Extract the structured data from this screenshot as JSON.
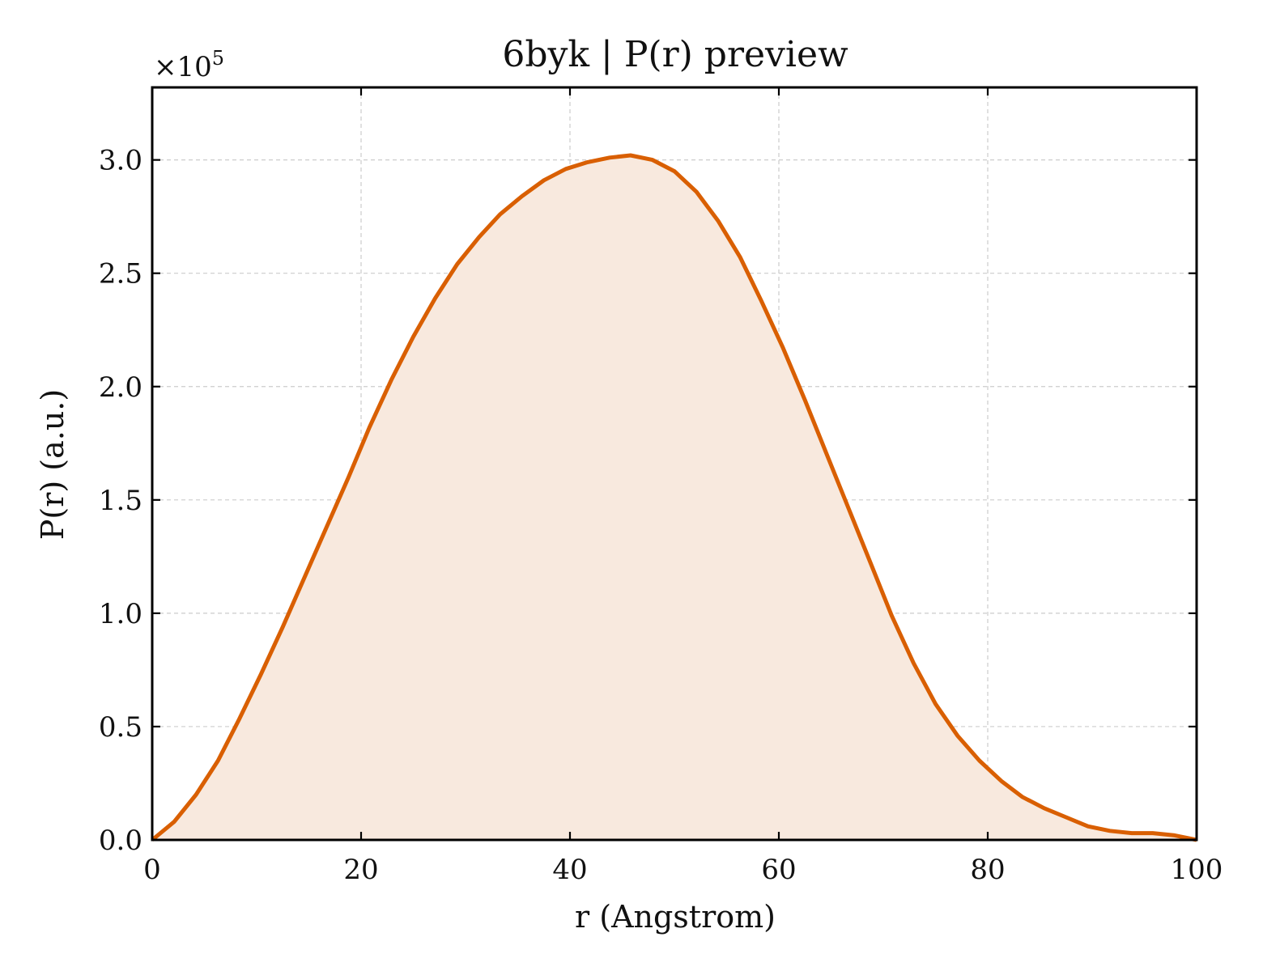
{
  "chart_data": {
    "type": "area",
    "title": "6byk | P(r) preview",
    "xlabel": "r (Angstrom)",
    "ylabel": "P(r) (a.u.)",
    "y_scale_multiplier": "×10",
    "y_scale_exponent": "5",
    "xlim": [
      0,
      100
    ],
    "ylim": [
      0,
      3.32
    ],
    "xticks": [
      0,
      20,
      40,
      60,
      80,
      100
    ],
    "xtick_labels": [
      "0",
      "20",
      "40",
      "60",
      "80",
      "100"
    ],
    "yticks": [
      0.0,
      0.5,
      1.0,
      1.5,
      2.0,
      2.5,
      3.0
    ],
    "ytick_labels": [
      "0.0",
      "0.5",
      "1.0",
      "1.5",
      "2.0",
      "2.5",
      "3.0"
    ],
    "grid": true,
    "legend": "none",
    "line_color": "#d95f02",
    "fill_color": "#f8e9de",
    "series": [
      {
        "x": [
          0,
          2.1,
          4.2,
          6.3,
          8.3,
          10.4,
          12.5,
          14.6,
          16.7,
          18.8,
          20.8,
          22.9,
          25.0,
          27.1,
          29.2,
          31.3,
          33.3,
          35.4,
          37.5,
          39.6,
          41.7,
          43.8,
          45.8,
          47.9,
          50.0,
          52.1,
          54.2,
          56.3,
          58.3,
          60.4,
          62.5,
          64.6,
          66.7,
          68.8,
          70.8,
          72.9,
          75.0,
          77.1,
          79.2,
          81.3,
          83.3,
          85.4,
          87.5,
          89.6,
          91.7,
          93.8,
          95.8,
          97.9,
          100
        ],
        "y": [
          0.0,
          0.08,
          0.2,
          0.35,
          0.53,
          0.73,
          0.94,
          1.16,
          1.38,
          1.6,
          1.82,
          2.03,
          2.22,
          2.39,
          2.54,
          2.66,
          2.76,
          2.84,
          2.91,
          2.96,
          2.99,
          3.01,
          3.02,
          3.0,
          2.95,
          2.86,
          2.73,
          2.57,
          2.38,
          2.17,
          1.94,
          1.7,
          1.46,
          1.22,
          0.99,
          0.78,
          0.6,
          0.46,
          0.35,
          0.26,
          0.19,
          0.14,
          0.1,
          0.06,
          0.04,
          0.03,
          0.03,
          0.02,
          0.0
        ]
      }
    ]
  }
}
